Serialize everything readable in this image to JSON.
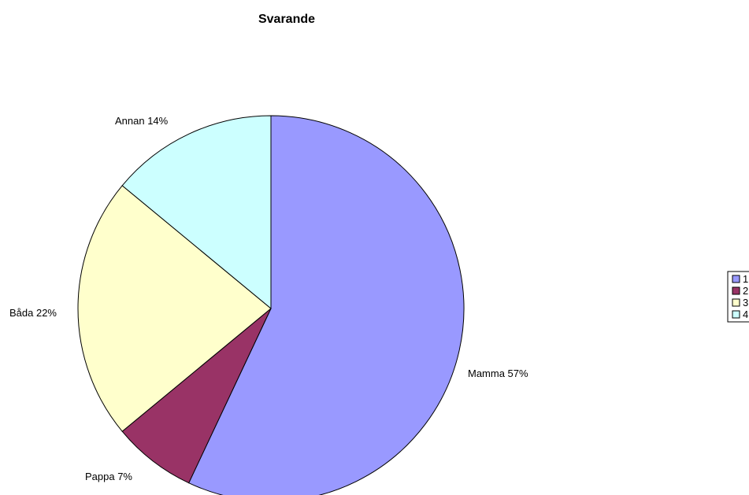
{
  "chart_data": {
    "type": "pie",
    "title": "Svarande",
    "slices": [
      {
        "label": "Mamma",
        "value": 57,
        "percent_label": "57%",
        "color": "#9999FF"
      },
      {
        "label": "Pappa",
        "value": 7,
        "percent_label": "7%",
        "color": "#993366"
      },
      {
        "label": "Båda",
        "value": 22,
        "percent_label": "22%",
        "color": "#FFFFCC"
      },
      {
        "label": "Annan",
        "value": 14,
        "percent_label": "14%",
        "color": "#CCFFFF"
      }
    ],
    "legend": {
      "placement": "right",
      "entries": [
        "1",
        "2",
        "3",
        "4"
      ]
    },
    "start_direction": "12 o'clock",
    "direction": "clockwise"
  }
}
